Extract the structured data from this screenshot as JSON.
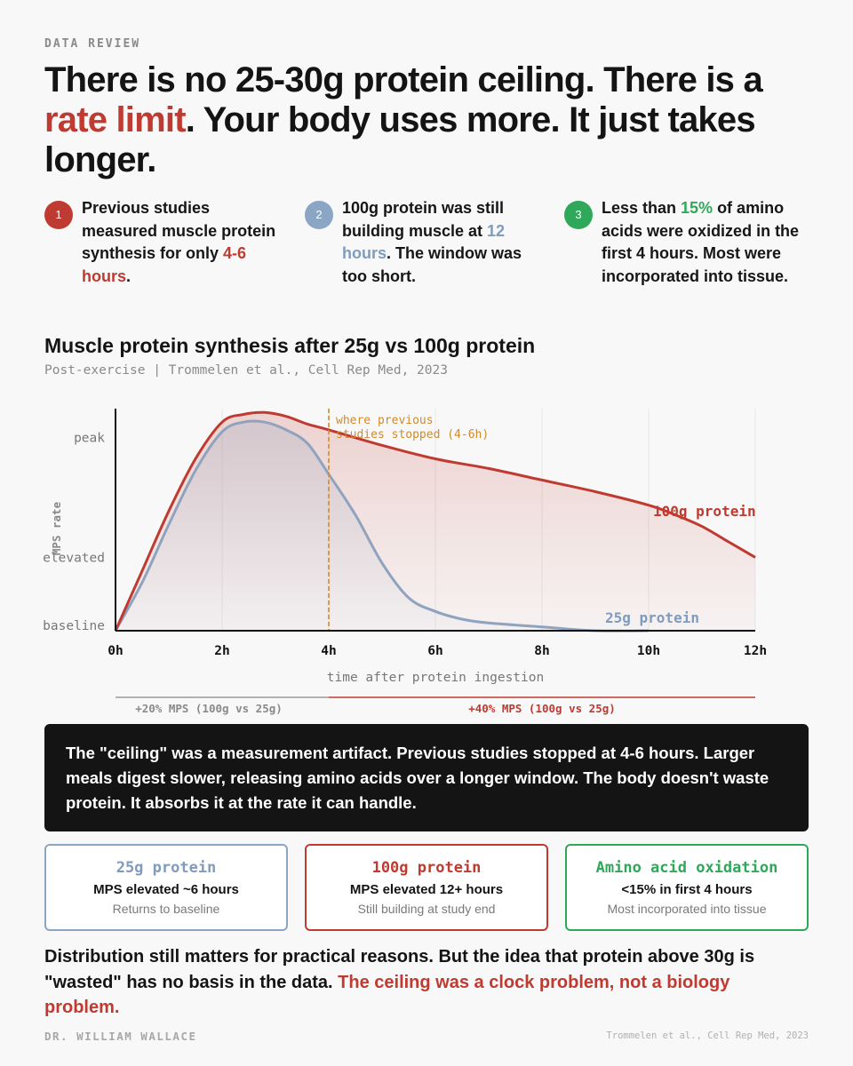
{
  "eyebrow": "DATA REVIEW",
  "headline": {
    "part1": "There is no 25-30g protein ceiling. There is a ",
    "accent": "rate limit",
    "part2": ". Your body uses more. It just takes longer."
  },
  "colors": {
    "red": "#bf3a30",
    "blue": "#7f9bbd",
    "green": "#2fa85a",
    "orange": "#d08a2c",
    "dark": "#141414"
  },
  "points": [
    {
      "num": "1",
      "pre": "Previous studies measured muscle protein synthesis for only ",
      "hl": "4-6 hours",
      "post": "."
    },
    {
      "num": "2",
      "pre": "100g protein was still building muscle at ",
      "hl": "12 hours",
      "post": ". The window was too short."
    },
    {
      "num": "3",
      "pre": "Less than ",
      "hl": "15%",
      "post": " of amino acids were oxidized in the first 4 hours. Most were incorporated into tissue."
    }
  ],
  "chart_title": "Muscle protein synthesis after 25g vs 100g protein",
  "chart_subtitle": "Post-exercise | Trommelen et al., Cell Rep Med, 2023",
  "chart_data": {
    "type": "area",
    "xlabel": "time after protein ingestion",
    "ylabel": "MPS rate",
    "x_ticks": [
      "0h",
      "2h",
      "4h",
      "6h",
      "8h",
      "10h",
      "12h"
    ],
    "xlim": [
      0,
      12
    ],
    "ylim": [
      0,
      1.15
    ],
    "y_ticks": [
      {
        "label": "baseline",
        "value": 0.0
      },
      {
        "label": "elevated",
        "value": 0.38
      },
      {
        "label": "peak",
        "value": 1.0
      }
    ],
    "grid": "vertical",
    "series": [
      {
        "name": "100g protein",
        "x": [
          0,
          0.5,
          1,
          1.5,
          2,
          2.4,
          2.8,
          3.2,
          3.6,
          4,
          5,
          6,
          7,
          8,
          9,
          10,
          10.5,
          11,
          11.5,
          12
        ],
        "y": [
          0,
          0.31,
          0.62,
          0.89,
          1.08,
          1.12,
          1.13,
          1.11,
          1.07,
          1.04,
          0.96,
          0.89,
          0.84,
          0.78,
          0.72,
          0.65,
          0.6,
          0.54,
          0.46,
          0.38
        ]
      },
      {
        "name": "25g protein",
        "x": [
          0,
          0.5,
          1,
          1.5,
          2,
          2.4,
          2.8,
          3.2,
          3.6,
          4,
          4.5,
          5,
          5.5,
          6,
          6.5,
          7,
          8,
          9,
          10
        ],
        "y": [
          0,
          0.25,
          0.55,
          0.83,
          1.03,
          1.08,
          1.08,
          1.04,
          0.97,
          0.81,
          0.6,
          0.35,
          0.17,
          0.1,
          0.06,
          0.04,
          0.02,
          0.0,
          0.0
        ]
      }
    ],
    "annotation": {
      "x": 4,
      "text_line1": "where previous",
      "text_line2": "studies stopped (4-6h)"
    },
    "ranges": [
      {
        "from": 0,
        "to": 4,
        "label": "+20% MPS (100g vs 25g)"
      },
      {
        "from": 4,
        "to": 12,
        "label": "+40% MPS (100g vs 25g)"
      }
    ]
  },
  "callout": "The \"ceiling\" was a measurement artifact. Previous studies stopped at 4-6 hours. Larger meals digest slower, releasing amino acids over a longer window. The body doesn't waste protein. It absorbs it at the rate it can handle.",
  "cards": [
    {
      "title": "25g protein",
      "main": "MPS elevated ~6 hours",
      "sub": "Returns to baseline"
    },
    {
      "title": "100g protein",
      "main": "MPS elevated 12+ hours",
      "sub": "Still building at study end"
    },
    {
      "title": "Amino acid oxidation",
      "main": "<15% in first 4 hours",
      "sub": "Most incorporated into tissue"
    }
  ],
  "conclusion": {
    "text": "Distribution still matters for practical reasons. But the idea that protein above 30g is \"wasted\" has no basis in the data. ",
    "accent": "The ceiling was a clock problem, not a biology problem."
  },
  "footer": {
    "author": "DR. WILLIAM WALLACE",
    "source": "Trommelen et al., Cell Rep Med, 2023"
  }
}
